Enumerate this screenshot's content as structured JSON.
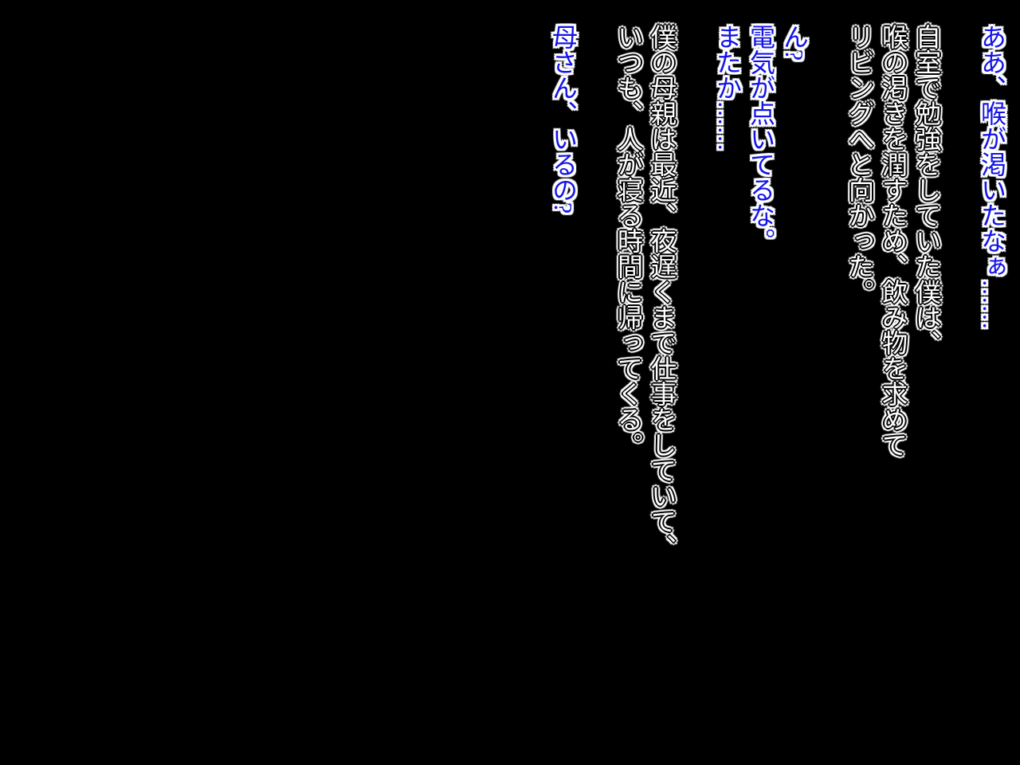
{
  "colors": {
    "background": "#000000",
    "monologue": "#1414e6",
    "narration": "#ffffff",
    "outline": "#ffffff",
    "edge": "#000000"
  },
  "text_block": {
    "groups": [
      {
        "kind": "monologue",
        "lines": [
          "ああ、喉が渇いたなぁ……"
        ]
      },
      {
        "kind": "narration",
        "lines": [
          "自室で勉強をしていた僕は、",
          "喉の渇きを潤すため、飲み物を求めて",
          "リビングへと向かった。"
        ]
      },
      {
        "kind": "monologue",
        "lines": [
          "ん?",
          "電気が点いてるな。",
          "またか……"
        ]
      },
      {
        "kind": "narration",
        "lines": [
          "僕の母親は最近、夜遅くまで仕事をしていて、",
          "いつも、人が寝る時間に帰ってくる。"
        ]
      },
      {
        "kind": "monologue",
        "lines": [
          "母さん、いるの?"
        ]
      }
    ]
  }
}
